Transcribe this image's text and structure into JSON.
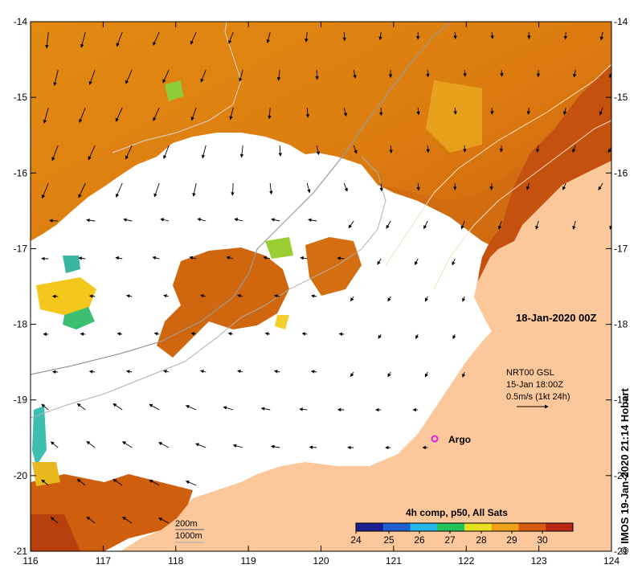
{
  "map": {
    "date_label": "18-Jan-2020 00Z",
    "current_info": [
      "NRT00 GSL",
      "15-Jan 18:00Z",
      "0.5m/s (1kt 24h)"
    ],
    "argo_label": "Argo",
    "colorbar_title": "4h comp, p50, All Sats",
    "colorbar_ticks": [
      "24",
      "25",
      "26",
      "27",
      "28",
      "29",
      "30"
    ],
    "colorbar_colors": [
      "#1b1f8f",
      "#1f5fd0",
      "#25b8e6",
      "#22c35a",
      "#e8e020",
      "#f0a01a",
      "#d85a10",
      "#b82814"
    ],
    "isobath_labels": [
      "200m",
      "1000m"
    ],
    "credit": "© IMOS 19-Jan-2020 21:14 Hobart",
    "x_ticks": [
      "116",
      "117",
      "118",
      "119",
      "120",
      "121",
      "122",
      "123",
      "124"
    ],
    "y_ticks": [
      "-14",
      "-15",
      "-16",
      "-17",
      "-18",
      "-19",
      "-20",
      "-21"
    ],
    "land_color": "#fcc79a",
    "sst_orange": "#e8880e",
    "sst_dark": "#c4520e",
    "argo_color": "#e020e0"
  }
}
